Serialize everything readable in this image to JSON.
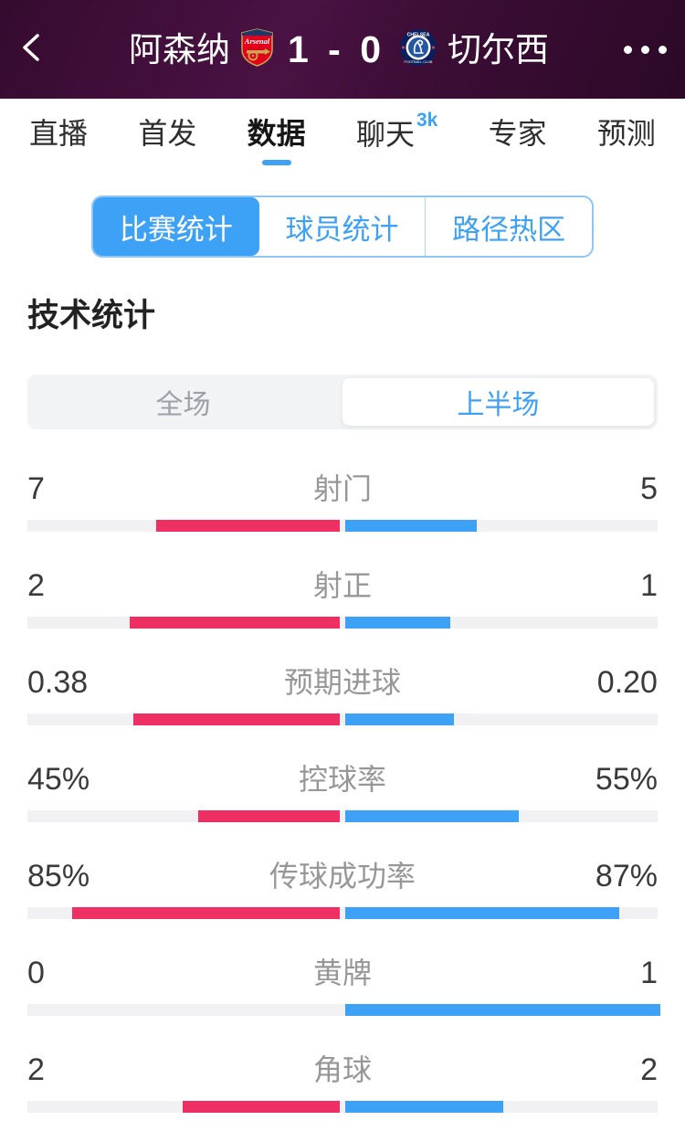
{
  "header": {
    "home_team": "阿森纳",
    "away_team": "切尔西",
    "score": "1 - 0"
  },
  "tabs": [
    {
      "label": "直播"
    },
    {
      "label": "首发"
    },
    {
      "label": "数据",
      "active": true
    },
    {
      "label": "聊天",
      "badge": "3k"
    },
    {
      "label": "专家"
    },
    {
      "label": "预测"
    }
  ],
  "stat_type_tabs": [
    {
      "label": "比赛统计",
      "active": true
    },
    {
      "label": "球员统计"
    },
    {
      "label": "路径热区"
    }
  ],
  "section_title": "技术统计",
  "period_toggle": {
    "full_label": "全场",
    "half_label": "上半场",
    "selected": "上半场"
  },
  "colors": {
    "home_bar": "#ee2f63",
    "away_bar": "#3da1f6",
    "accent_blue": "#3da1f6",
    "header_bg": "#441240",
    "track": "#f1f1f3"
  },
  "chart_data": {
    "type": "bar",
    "title": "技术统计 - 上半场",
    "home_team": "阿森纳",
    "away_team": "切尔西",
    "legend_note": "left pink = home (Arsenal), right blue = away (Chelsea); bar length = value share of row total (percent rows use value/100)",
    "rows": [
      {
        "label": "射门",
        "home": "7",
        "away": "5"
      },
      {
        "label": "射正",
        "home": "2",
        "away": "1"
      },
      {
        "label": "预期进球",
        "home": "0.38",
        "away": "0.20"
      },
      {
        "label": "控球率",
        "home": "45%",
        "away": "55%"
      },
      {
        "label": "传球成功率",
        "home": "85%",
        "away": "87%"
      },
      {
        "label": "黄牌",
        "home": "0",
        "away": "1"
      },
      {
        "label": "角球",
        "home": "2",
        "away": "2"
      }
    ]
  }
}
